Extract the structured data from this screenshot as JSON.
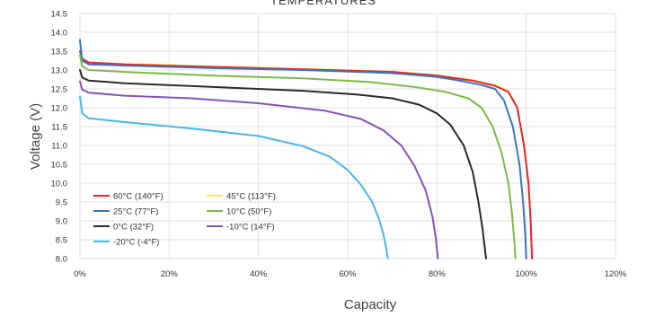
{
  "chart_data": {
    "type": "line",
    "title": "TEMPERATURES",
    "xlabel": "Capacity",
    "ylabel": "Voltage (V)",
    "xlim": [
      0,
      120
    ],
    "ylim": [
      8.0,
      14.5
    ],
    "x_ticks": [
      "0%",
      "20%",
      "40%",
      "60%",
      "80%",
      "100%",
      "120%"
    ],
    "y_ticks": [
      "8.0",
      "8.5",
      "9.0",
      "9.5",
      "10.0",
      "10.5",
      "11.0",
      "11.5",
      "12.0",
      "12.5",
      "13.0",
      "13.5",
      "14.0",
      "14.5"
    ],
    "grid": true,
    "legend_position": "bottom-left",
    "series": [
      {
        "name": "60°C  (140°F)",
        "color": "#e8262a",
        "x": [
          0,
          0.5,
          2,
          10,
          30,
          50,
          70,
          80,
          88,
          93,
          96,
          98,
          99.5,
          100.5,
          101,
          101.3
        ],
        "y": [
          13.5,
          13.3,
          13.2,
          13.15,
          13.08,
          13.02,
          12.95,
          12.85,
          12.72,
          12.58,
          12.42,
          12.0,
          11.0,
          10.0,
          9.0,
          8.0
        ]
      },
      {
        "name": "45°C  (113°F)",
        "color": "#f3e66b",
        "x": [
          0,
          0.5,
          2,
          10,
          30,
          50,
          70,
          80,
          88,
          93,
          96,
          98,
          99.5,
          100.5,
          101,
          101.3
        ],
        "y": [
          13.4,
          13.25,
          13.2,
          13.16,
          13.1,
          13.03,
          12.96,
          12.86,
          12.73,
          12.6,
          12.44,
          12.0,
          11.0,
          10.0,
          9.0,
          8.0
        ]
      },
      {
        "name": "25°C  (77°F)",
        "color": "#3b73bd",
        "x": [
          0,
          0.5,
          2,
          10,
          30,
          50,
          70,
          80,
          86,
          90,
          93,
          95,
          97,
          98.5,
          99.3,
          99.8,
          100
        ],
        "y": [
          13.8,
          13.25,
          13.15,
          13.12,
          13.05,
          13.0,
          12.92,
          12.82,
          12.7,
          12.6,
          12.5,
          12.2,
          11.5,
          10.5,
          9.5,
          8.6,
          8.0
        ]
      },
      {
        "name": "10°C  (50°F)",
        "color": "#7fb947",
        "x": [
          0,
          0.5,
          2,
          10,
          30,
          50,
          65,
          75,
          82,
          87,
          90,
          92.5,
          94.5,
          96,
          96.8,
          97.3,
          97.6
        ],
        "y": [
          13.4,
          13.1,
          13.0,
          12.95,
          12.85,
          12.78,
          12.68,
          12.55,
          12.42,
          12.25,
          12.0,
          11.5,
          10.8,
          10.0,
          9.2,
          8.5,
          8.0
        ]
      },
      {
        "name": "0°C  (32°F)",
        "color": "#2a2a2a",
        "x": [
          0,
          0.5,
          2,
          10,
          30,
          50,
          62,
          70,
          76,
          80,
          83,
          86,
          88,
          89.3,
          90.2,
          90.7,
          91
        ],
        "y": [
          13.0,
          12.8,
          12.72,
          12.65,
          12.55,
          12.45,
          12.35,
          12.25,
          12.08,
          11.85,
          11.55,
          11.0,
          10.3,
          9.5,
          8.8,
          8.3,
          8.0
        ]
      },
      {
        "name": "-10°C  (14°F)",
        "color": "#8155b8",
        "x": [
          0,
          0.5,
          2,
          10,
          25,
          40,
          55,
          63,
          68,
          72,
          75,
          77.5,
          79,
          79.8,
          80.2
        ],
        "y": [
          12.7,
          12.48,
          12.4,
          12.32,
          12.25,
          12.12,
          11.92,
          11.7,
          11.4,
          11.0,
          10.45,
          9.8,
          9.1,
          8.5,
          8.0
        ]
      },
      {
        "name": "-20°C  (-4°F)",
        "color": "#4bb6e6",
        "x": [
          0,
          0.5,
          2,
          10,
          25,
          40,
          50,
          56,
          60,
          63,
          65.5,
          67,
          68,
          68.6,
          69
        ],
        "y": [
          12.3,
          11.85,
          11.72,
          11.62,
          11.45,
          11.25,
          10.98,
          10.7,
          10.35,
          9.95,
          9.5,
          9.05,
          8.65,
          8.3,
          8.0
        ]
      }
    ],
    "legend_order": [
      0,
      1,
      2,
      3,
      4,
      5,
      6
    ]
  }
}
